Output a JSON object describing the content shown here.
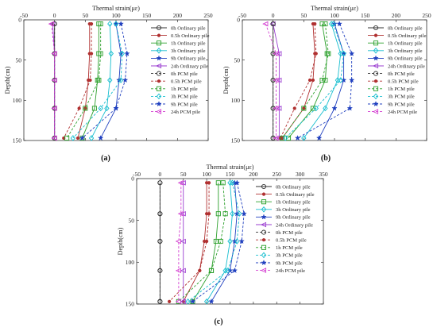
{
  "chart_data": [
    {
      "type": "line",
      "panel_label": "(a)",
      "xlabel": "Thermal strain(με)",
      "ylabel": "Depth(cm)",
      "xlim": [
        -50,
        250
      ],
      "ylim": [
        0,
        150
      ],
      "x_ticks": [
        "-50",
        "0",
        "50",
        "100",
        "150",
        "200",
        "250"
      ],
      "y_ticks": [
        "0",
        "50",
        "100",
        "150"
      ],
      "depths": [
        5,
        42,
        75,
        110,
        147
      ],
      "legend_position": "top-right",
      "series": [
        {
          "name": "0h Ordinary pile",
          "color": "#333333",
          "dash": false,
          "marker": "circle",
          "values": [
            0,
            0,
            0,
            0,
            0
          ]
        },
        {
          "name": "0.5h Ordinary pile",
          "color": "#b03030",
          "dash": false,
          "marker": "dot",
          "values": [
            57,
            57,
            55,
            50,
            38
          ]
        },
        {
          "name": "1h Ordinary pile",
          "color": "#2ca02c",
          "dash": false,
          "marker": "square",
          "values": [
            72,
            72,
            70,
            65,
            45
          ]
        },
        {
          "name": "3h Ordinary pile",
          "color": "#17becf",
          "dash": false,
          "marker": "diamond",
          "values": [
            90,
            92,
            90,
            85,
            60
          ]
        },
        {
          "name": "9h Ordinary pile",
          "color": "#1f3fbf",
          "dash": false,
          "marker": "star",
          "values": [
            100,
            108,
            105,
            100,
            75
          ]
        },
        {
          "name": "24h Ordinary pile",
          "color": "#9b3fd1",
          "dash": false,
          "marker": "tri-left",
          "values": [
            -3,
            0,
            0,
            0,
            0
          ]
        },
        {
          "name": "0h PCM pile",
          "color": "#333333",
          "dash": true,
          "marker": "circle",
          "values": [
            0,
            0,
            0,
            0,
            0
          ]
        },
        {
          "name": "0.5h PCM pile",
          "color": "#b03030",
          "dash": true,
          "marker": "dot",
          "values": [
            60,
            60,
            58,
            40,
            15
          ]
        },
        {
          "name": "1h PCM pile",
          "color": "#2ca02c",
          "dash": true,
          "marker": "square",
          "values": [
            75,
            75,
            72,
            50,
            20
          ]
        },
        {
          "name": "3h PCM pile",
          "color": "#17becf",
          "dash": true,
          "marker": "diamond",
          "values": [
            100,
            110,
            108,
            75,
            30
          ]
        },
        {
          "name": "9h PCM pile",
          "color": "#1f3fbf",
          "dash": true,
          "marker": "star",
          "values": [
            108,
            118,
            115,
            100,
            45
          ]
        },
        {
          "name": "24h PCM pile",
          "color": "#d43fd1",
          "dash": true,
          "marker": "tri-left",
          "values": [
            -5,
            0,
            0,
            0,
            0
          ]
        }
      ]
    },
    {
      "type": "line",
      "panel_label": "(b)",
      "xlabel": "Thermal strain(με)",
      "ylabel": "Depth(cm)",
      "xlim": [
        -50,
        250
      ],
      "ylim": [
        0,
        150
      ],
      "x_ticks": [
        "-50",
        "0",
        "50",
        "100",
        "150",
        "200",
        "250"
      ],
      "y_ticks": [
        "0",
        "50",
        "100",
        "150"
      ],
      "depths": [
        5,
        42,
        75,
        110,
        147
      ],
      "legend_position": "top-right",
      "series": [
        {
          "name": "0h Ordinary pile",
          "color": "#333333",
          "dash": false,
          "marker": "circle",
          "values": [
            0,
            0,
            0,
            0,
            0
          ]
        },
        {
          "name": "0.5h Ordinary pile",
          "color": "#b03030",
          "dash": false,
          "marker": "dot",
          "values": [
            65,
            68,
            65,
            50,
            15
          ]
        },
        {
          "name": "1h Ordinary pile",
          "color": "#2ca02c",
          "dash": false,
          "marker": "square",
          "values": [
            80,
            88,
            85,
            65,
            25
          ]
        },
        {
          "name": "3h Ordinary pile",
          "color": "#17becf",
          "dash": false,
          "marker": "diamond",
          "values": [
            95,
            110,
            105,
            85,
            50
          ]
        },
        {
          "name": "9h Ordinary pile",
          "color": "#1f3fbf",
          "dash": false,
          "marker": "star",
          "values": [
            100,
            115,
            115,
            100,
            75
          ]
        },
        {
          "name": "24h Ordinary pile",
          "color": "#9b3fd1",
          "dash": false,
          "marker": "tri-left",
          "values": [
            0,
            10,
            10,
            10,
            10
          ]
        },
        {
          "name": "0h PCM pile",
          "color": "#333333",
          "dash": true,
          "marker": "circle",
          "values": [
            0,
            0,
            0,
            0,
            0
          ]
        },
        {
          "name": "0.5h PCM pile",
          "color": "#b03030",
          "dash": true,
          "marker": "dot",
          "values": [
            68,
            70,
            60,
            35,
            12
          ]
        },
        {
          "name": "1h PCM pile",
          "color": "#2ca02c",
          "dash": true,
          "marker": "square",
          "values": [
            85,
            90,
            80,
            50,
            15
          ]
        },
        {
          "name": "3h PCM pile",
          "color": "#17becf",
          "dash": true,
          "marker": "diamond",
          "values": [
            98,
            115,
            110,
            70,
            20
          ]
        },
        {
          "name": "9h PCM pile",
          "color": "#1f3fbf",
          "dash": true,
          "marker": "star",
          "values": [
            108,
            128,
            128,
            125,
            40
          ]
        },
        {
          "name": "24h PCM pile",
          "color": "#d43fd1",
          "dash": true,
          "marker": "tri-left",
          "values": [
            -12,
            5,
            5,
            5,
            5
          ]
        }
      ]
    },
    {
      "type": "line",
      "panel_label": "(c)",
      "xlabel": "Thermal strain(με)",
      "ylabel": "Depth(cm)",
      "xlim": [
        -50,
        350
      ],
      "ylim": [
        0,
        150
      ],
      "x_ticks": [
        "-50",
        "0",
        "50",
        "100",
        "150",
        "200",
        "250",
        "300",
        "350"
      ],
      "y_ticks": [
        "0",
        "50",
        "100",
        "150"
      ],
      "depths": [
        5,
        42,
        75,
        110,
        147
      ],
      "legend_position": "top-right",
      "series": [
        {
          "name": "0h Ordinary pile",
          "color": "#333333",
          "dash": false,
          "marker": "circle",
          "values": [
            0,
            0,
            0,
            0,
            0
          ]
        },
        {
          "name": "0.5h Ordinary pile",
          "color": "#b03030",
          "dash": false,
          "marker": "dot",
          "values": [
            100,
            100,
            95,
            85,
            50
          ]
        },
        {
          "name": "1h Ordinary pile",
          "color": "#2ca02c",
          "dash": false,
          "marker": "square",
          "values": [
            125,
            125,
            120,
            110,
            70
          ]
        },
        {
          "name": "3h Ordinary pile",
          "color": "#17becf",
          "dash": false,
          "marker": "diamond",
          "values": [
            150,
            155,
            150,
            140,
            100
          ]
        },
        {
          "name": "9h Ordinary pile",
          "color": "#1f3fbf",
          "dash": false,
          "marker": "star",
          "values": [
            160,
            165,
            160,
            150,
            110
          ]
        },
        {
          "name": "24h Ordinary pile",
          "color": "#9b3fd1",
          "dash": false,
          "marker": "tri-left",
          "values": [
            50,
            50,
            50,
            50,
            50
          ]
        },
        {
          "name": "0h PCM pile",
          "color": "#333333",
          "dash": true,
          "marker": "circle",
          "values": [
            0,
            0,
            0,
            0,
            0
          ]
        },
        {
          "name": "0.5h PCM pile",
          "color": "#b03030",
          "dash": true,
          "marker": "dot",
          "values": [
            105,
            105,
            100,
            85,
            20
          ]
        },
        {
          "name": "1h PCM pile",
          "color": "#2ca02c",
          "dash": true,
          "marker": "square",
          "values": [
            135,
            140,
            130,
            110,
            40
          ]
        },
        {
          "name": "3h PCM pile",
          "color": "#17becf",
          "dash": true,
          "marker": "diamond",
          "values": [
            155,
            170,
            165,
            145,
            60
          ]
        },
        {
          "name": "9h PCM pile",
          "color": "#1f3fbf",
          "dash": true,
          "marker": "star",
          "values": [
            165,
            180,
            175,
            160,
            70
          ]
        },
        {
          "name": "24h PCM pile",
          "color": "#d43fd1",
          "dash": true,
          "marker": "tri-left",
          "values": [
            45,
            45,
            40,
            40,
            40
          ]
        }
      ]
    }
  ]
}
